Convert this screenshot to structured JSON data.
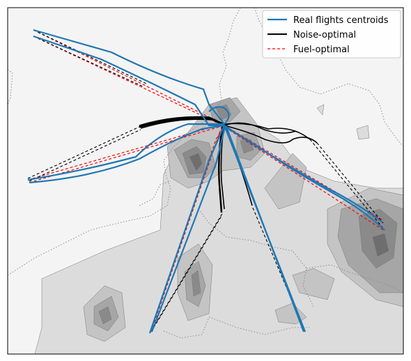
{
  "legend": {
    "items": [
      {
        "label": "Real flights centroids",
        "color": "#1f77b4",
        "style": "solid"
      },
      {
        "label": "Noise-optimal",
        "color": "#000000",
        "style": "solid"
      },
      {
        "label": "Fuel-optimal",
        "color": "#ff0000",
        "style": "dashed"
      }
    ]
  },
  "colors": {
    "background": "#f4f4f4",
    "contour_light": "#dcdcdc",
    "contour_mid": "#c4c4c4",
    "contour_dark": "#a6a6a6",
    "contour_darker": "#8a8a8a",
    "contour_darkest": "#6e6e6e",
    "border_dotted": "#8c8c8c",
    "real_flights": "#1f77b4",
    "noise_optimal": "#000000",
    "fuel_optimal": "#ff0000"
  }
}
